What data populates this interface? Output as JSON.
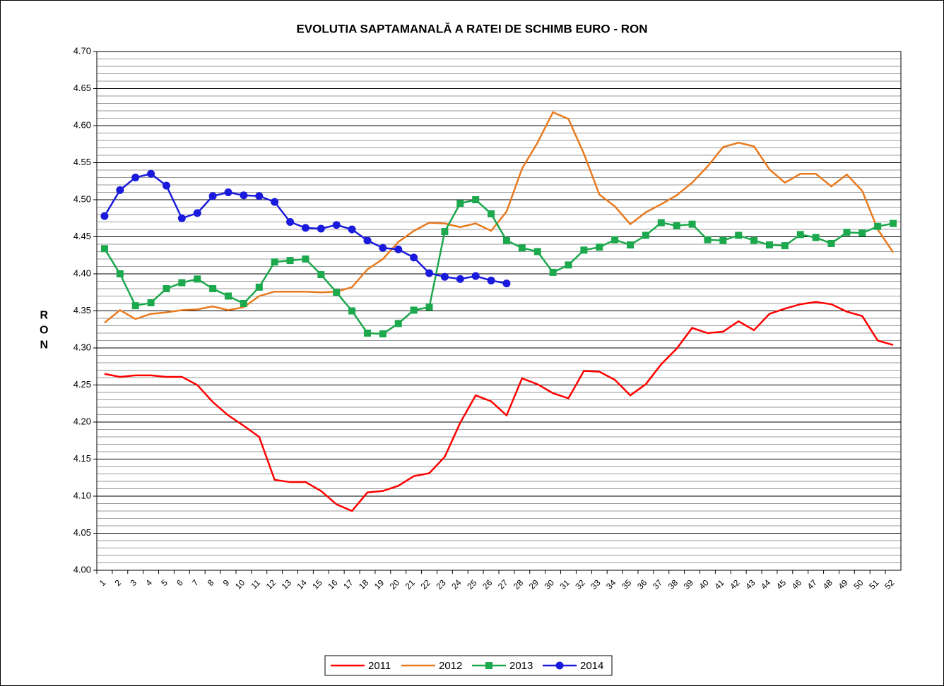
{
  "chart_data": {
    "type": "line",
    "title": "EVOLUTIA SAPTAMANALĂ A RATEI DE SCHIMB EURO - RON",
    "y_label": "RON",
    "categories": [
      "1",
      "2",
      "3",
      "4",
      "5",
      "6",
      "7",
      "8",
      "9",
      "10",
      "11",
      "12",
      "13",
      "14",
      "15",
      "16",
      "17",
      "18",
      "19",
      "20",
      "21",
      "22",
      "23",
      "24",
      "25",
      "26",
      "27",
      "28",
      "29",
      "30",
      "31",
      "32",
      "33",
      "34",
      "35",
      "36",
      "37",
      "38",
      "39",
      "40",
      "41",
      "42",
      "43",
      "44",
      "45",
      "46",
      "47",
      "48",
      "49",
      "50",
      "51",
      "52"
    ],
    "series": [
      {
        "name": "2011",
        "color": "#ff0000",
        "marker": "none",
        "values": [
          4.265,
          4.261,
          4.263,
          4.263,
          4.261,
          4.261,
          4.25,
          4.227,
          4.209,
          4.195,
          4.18,
          4.122,
          4.119,
          4.119,
          4.107,
          4.089,
          4.08,
          4.105,
          4.107,
          4.114,
          4.127,
          4.131,
          4.153,
          4.199,
          4.236,
          4.228,
          4.209,
          4.259,
          4.251,
          4.239,
          4.232,
          4.269,
          4.268,
          4.257,
          4.236,
          4.251,
          4.278,
          4.299,
          4.327,
          4.32,
          4.322,
          4.336,
          4.324,
          4.346,
          4.353,
          4.359,
          4.362,
          4.359,
          4.349,
          4.343,
          4.31,
          4.304
        ]
      },
      {
        "name": "2012",
        "color": "#e87a1e",
        "marker": "none",
        "values": [
          4.334,
          4.351,
          4.339,
          4.346,
          4.348,
          4.351,
          4.352,
          4.356,
          4.351,
          4.355,
          4.37,
          4.376,
          4.376,
          4.376,
          4.375,
          4.376,
          4.382,
          4.406,
          4.42,
          4.443,
          4.458,
          4.469,
          4.468,
          4.463,
          4.468,
          4.458,
          4.484,
          4.542,
          4.577,
          4.618,
          4.609,
          4.562,
          4.507,
          4.491,
          4.467,
          4.483,
          4.494,
          4.506,
          4.523,
          4.545,
          4.571,
          4.577,
          4.572,
          4.541,
          4.523,
          4.535,
          4.535,
          4.518,
          4.534,
          4.512,
          4.46,
          4.429
        ]
      },
      {
        "name": "2013",
        "color": "#1ca84c",
        "marker": "square",
        "values": [
          4.434,
          4.4,
          4.357,
          4.361,
          4.38,
          4.388,
          4.393,
          4.38,
          4.37,
          4.36,
          4.382,
          4.416,
          4.418,
          4.42,
          4.399,
          4.375,
          4.35,
          4.32,
          4.319,
          4.333,
          4.351,
          4.355,
          4.457,
          4.495,
          4.5,
          4.481,
          4.445,
          4.435,
          4.43,
          4.402,
          4.412,
          4.432,
          4.436,
          4.446,
          4.439,
          4.452,
          4.469,
          4.465,
          4.467,
          4.446,
          4.445,
          4.452,
          4.445,
          4.439,
          4.438,
          4.453,
          4.449,
          4.441,
          4.456,
          4.455,
          4.464,
          4.468
        ]
      },
      {
        "name": "2014",
        "color": "#1a1adc",
        "marker": "circle",
        "values": [
          4.478,
          4.513,
          4.53,
          4.535,
          4.519,
          4.475,
          4.482,
          4.505,
          4.51,
          4.506,
          4.505,
          4.497,
          4.47,
          4.462,
          4.461,
          4.466,
          4.46,
          4.445,
          4.435,
          4.433,
          4.422,
          4.401,
          4.396,
          4.393,
          4.397,
          4.391,
          4.387,
          null,
          null,
          null,
          null,
          null,
          null,
          null,
          null,
          null,
          null,
          null,
          null,
          null,
          null,
          null,
          null,
          null,
          null,
          null,
          null,
          null,
          null,
          null,
          null,
          null
        ]
      }
    ],
    "ylim": [
      4.0,
      4.7
    ],
    "yticks": [
      {
        "value": 4.0,
        "label": "4.00"
      },
      {
        "value": 4.05,
        "label": "4.05"
      },
      {
        "value": 4.1,
        "label": "4.10"
      },
      {
        "value": 4.15,
        "label": "4.15"
      },
      {
        "value": 4.2,
        "label": "4.20"
      },
      {
        "value": 4.25,
        "label": "4.25"
      },
      {
        "value": 4.3,
        "label": "4.30"
      },
      {
        "value": 4.35,
        "label": "4.35"
      },
      {
        "value": 4.4,
        "label": "4.40"
      },
      {
        "value": 4.45,
        "label": "4.45"
      },
      {
        "value": 4.5,
        "label": "4.50"
      },
      {
        "value": 4.55,
        "label": "4.55"
      },
      {
        "value": 4.6,
        "label": "4.60"
      },
      {
        "value": 4.65,
        "label": "4.65"
      },
      {
        "value": 4.7,
        "label": "4.70"
      }
    ],
    "grid": true,
    "minor_grid": true,
    "legend": "bottom"
  }
}
